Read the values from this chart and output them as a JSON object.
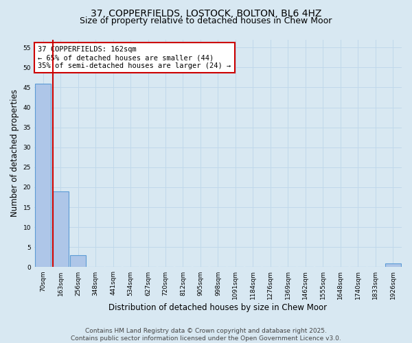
{
  "title_line1": "37, COPPERFIELDS, LOSTOCK, BOLTON, BL6 4HZ",
  "title_line2": "Size of property relative to detached houses in Chew Moor",
  "xlabel": "Distribution of detached houses by size in Chew Moor",
  "ylabel": "Number of detached properties",
  "categories": [
    "70sqm",
    "163sqm",
    "256sqm",
    "348sqm",
    "441sqm",
    "534sqm",
    "627sqm",
    "720sqm",
    "812sqm",
    "905sqm",
    "998sqm",
    "1091sqm",
    "1184sqm",
    "1276sqm",
    "1369sqm",
    "1462sqm",
    "1555sqm",
    "1648sqm",
    "1740sqm",
    "1833sqm",
    "1926sqm"
  ],
  "values": [
    46,
    19,
    3,
    0,
    0,
    0,
    0,
    0,
    0,
    0,
    0,
    0,
    0,
    0,
    0,
    0,
    0,
    0,
    0,
    0,
    1
  ],
  "bar_color": "#aec6e8",
  "bar_edge_color": "#5b9bd5",
  "property_line_color": "#cc0000",
  "annotation_text_line1": "37 COPPERFIELDS: 162sqm",
  "annotation_text_line2": "← 65% of detached houses are smaller (44)",
  "annotation_text_line3": "35% of semi-detached houses are larger (24) →",
  "annotation_box_color": "#cc0000",
  "ylim": [
    0,
    57
  ],
  "yticks": [
    0,
    5,
    10,
    15,
    20,
    25,
    30,
    35,
    40,
    45,
    50,
    55
  ],
  "grid_color": "#c0d8ea",
  "background_color": "#d8e8f2",
  "title_fontsize": 10,
  "subtitle_fontsize": 9,
  "tick_fontsize": 6.5,
  "label_fontsize": 8.5,
  "annotation_fontsize": 7.5,
  "footer_fontsize": 6.5,
  "footer_line1": "Contains HM Land Registry data © Crown copyright and database right 2025.",
  "footer_line2": "Contains public sector information licensed under the Open Government Licence v3.0."
}
